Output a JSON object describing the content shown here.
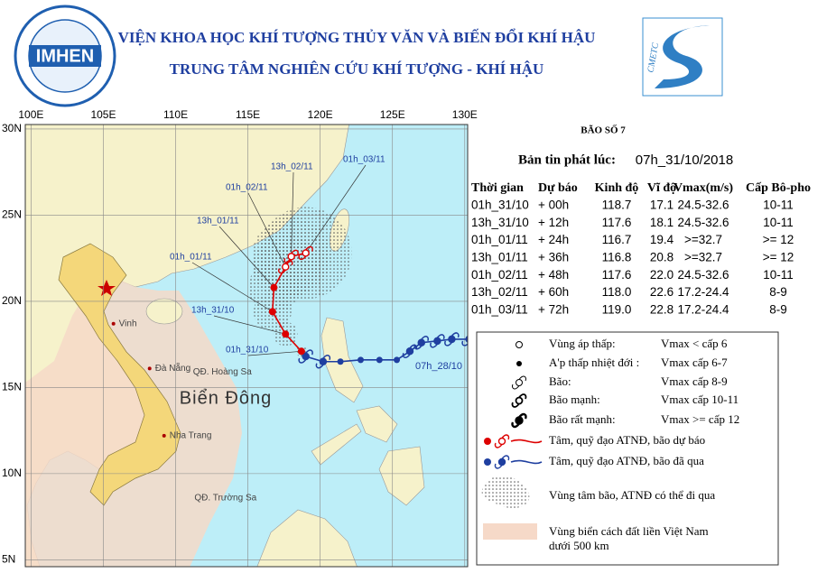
{
  "header": {
    "institute": "VIỆN KHOA HỌC KHÍ TƯỢNG THỦY VĂN VÀ BIẾN ĐỔI KHÍ HẬU",
    "center": "TRUNG TÂM NGHIÊN CỨU KHÍ TƯỢNG - KHÍ HẬU",
    "logo_left": "IMHEN",
    "logo_right": "CMETC"
  },
  "map": {
    "lonlim": [
      99.6,
      130.2
    ],
    "latlim": [
      30.26,
      4.6
    ],
    "lon_ticks": [
      {
        "value": 100,
        "label": "100E"
      },
      {
        "value": 105,
        "label": "105E"
      },
      {
        "value": 110,
        "label": "110E"
      },
      {
        "value": 115,
        "label": "115E"
      },
      {
        "value": 120,
        "label": "120E"
      },
      {
        "value": 125,
        "label": "125E"
      },
      {
        "value": 130,
        "label": "130E"
      }
    ],
    "lat_ticks": [
      {
        "value": 30,
        "label": "30N"
      },
      {
        "value": 25,
        "label": "25N"
      },
      {
        "value": 20,
        "label": "20N"
      },
      {
        "value": 15,
        "label": "15N"
      },
      {
        "value": 10,
        "label": "10N"
      },
      {
        "value": 5,
        "label": "5N"
      }
    ],
    "sea_label": "Biển Đông",
    "places": [
      {
        "name": "Vinh",
        "lon": 105.7,
        "lat": 18.7
      },
      {
        "name": "Đà Nẵng",
        "lon": 108.2,
        "lat": 16.1
      },
      {
        "name": "Nha Trang",
        "lon": 109.2,
        "lat": 12.2
      },
      {
        "name": "QĐ. Hoàng Sa",
        "lon": 111.2,
        "lat": 15.9
      },
      {
        "name": "QĐ. Trường Sa",
        "lon": 111.3,
        "lat": 8.6
      }
    ],
    "past_track": {
      "label": "07h_28/10",
      "lon": [
        130.3,
        129.1,
        128.1,
        127.0,
        126.2,
        125.3,
        124.1,
        122.8,
        121.4,
        120.2,
        119.0
      ],
      "lat": [
        17.8,
        17.8,
        17.7,
        17.6,
        17.1,
        16.6,
        16.6,
        16.6,
        16.5,
        16.5,
        16.8
      ]
    }
  },
  "panel": {
    "storm": "BÃO SỐ 7",
    "issued_label": "Bản tin phát lúc:",
    "issued": "07h_31/10/2018"
  },
  "table": {
    "headers": [
      "Thời gian",
      "Dự báo",
      "Kinh độ",
      "Vĩ độ",
      "Vmax(m/s)",
      "Cấp Bô-pho"
    ],
    "rows": [
      [
        "01h_31/10",
        "+ 00h",
        "118.7",
        "17.1",
        "24.5-32.6",
        "10-11"
      ],
      [
        "13h_31/10",
        "+ 12h",
        "117.6",
        "18.1",
        "24.5-32.6",
        "10-11"
      ],
      [
        "01h_01/11",
        "+ 24h",
        "116.7",
        "19.4",
        ">=32.7",
        ">= 12"
      ],
      [
        "13h_01/11",
        "+ 36h",
        "116.8",
        "20.8",
        ">=32.7",
        ">= 12"
      ],
      [
        "01h_02/11",
        "+ 48h",
        "117.6",
        "22.0",
        "24.5-32.6",
        "10-11"
      ],
      [
        "13h_02/11",
        "+ 60h",
        "118.0",
        "22.6",
        "17.2-24.4",
        "8-9"
      ],
      [
        "01h_03/11",
        "+ 72h",
        "119.0",
        "22.8",
        "17.2-24.4",
        "8-9"
      ]
    ]
  },
  "legend": {
    "items": [
      {
        "label": "Vùng áp thấp:",
        "note": "Vmax < cấp 6"
      },
      {
        "label": "A'p thấp nhiệt đới :",
        "note": "Vmax cấp 6-7"
      },
      {
        "label": "Bão:",
        "note": "Vmax cấp 8-9"
      },
      {
        "label": "Bão mạnh:",
        "note": "Vmax cấp 10-11"
      },
      {
        "label": "Bão rất mạnh:",
        "note": "Vmax >= cấp 12"
      }
    ],
    "forecast": "Tâm, quỹ đạo ATNĐ, bão dự báo",
    "past": "Tâm, quỹ đạo ATNĐ, bão đã qua",
    "cone": "Vùng tâm bão, ATNĐ có thể đi qua",
    "zone": [
      "Vùng biển cách đất liền Việt Nam",
      "dưới 500 km"
    ]
  }
}
